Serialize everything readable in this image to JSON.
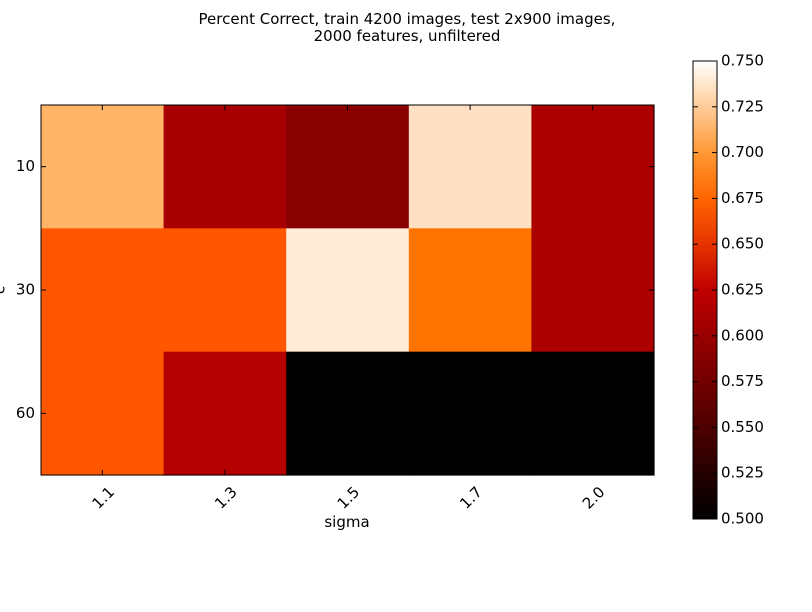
{
  "chart_data": {
    "type": "heatmap",
    "title": "Percent Correct, train 4200 images, test 2x900 images,\n2000 features, unfiltered",
    "title_lines": [
      "Percent Correct, train 4200 images, test 2x900 images,",
      "2000 features, unfiltered"
    ],
    "xlabel": "sigma",
    "ylabel": "c",
    "x_categories": [
      "1.1",
      "1.3",
      "1.5",
      "1.7",
      "2.0"
    ],
    "y_categories": [
      "10",
      "30",
      "60"
    ],
    "values": [
      [
        0.713,
        0.61,
        0.589,
        0.735,
        0.612
      ],
      [
        0.667,
        0.667,
        0.74,
        0.682,
        0.612
      ],
      [
        0.667,
        0.617,
        0.5,
        0.5,
        0.5
      ]
    ],
    "colorbar": {
      "min": 0.5,
      "max": 0.75,
      "ticks": [
        "0.500",
        "0.525",
        "0.550",
        "0.575",
        "0.600",
        "0.625",
        "0.650",
        "0.675",
        "0.700",
        "0.725",
        "0.750"
      ]
    },
    "colormap": "gist_heat",
    "grid": false
  }
}
